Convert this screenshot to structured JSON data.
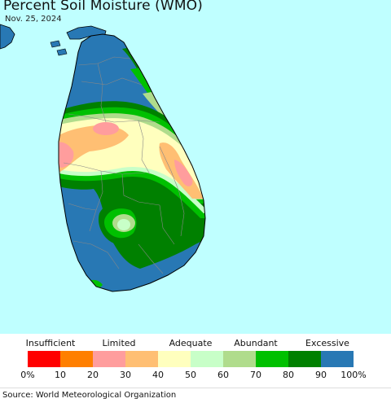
{
  "title": "Percent Soil Moisture (WMO)",
  "date": "Nov. 25, 2024",
  "source": "Source: World Meteorological Organization",
  "legend": {
    "categories": [
      {
        "label": "Insufficient",
        "position_pct": 7
      },
      {
        "label": "Limited",
        "position_pct": 28
      },
      {
        "label": "Adequate",
        "position_pct": 50
      },
      {
        "label": "Abundant",
        "position_pct": 70
      },
      {
        "label": "Excessive",
        "position_pct": 92
      }
    ],
    "bins": [
      {
        "range": "0-10",
        "color": "#ff0000"
      },
      {
        "range": "10-20",
        "color": "#ff7f00"
      },
      {
        "range": "20-30",
        "color": "#ff9d9d"
      },
      {
        "range": "30-40",
        "color": "#ffbf73"
      },
      {
        "range": "40-50",
        "color": "#ffffbe"
      },
      {
        "range": "50-60",
        "color": "#c8ffc8"
      },
      {
        "range": "60-70",
        "color": "#b0dc8c"
      },
      {
        "range": "70-80",
        "color": "#00c000"
      },
      {
        "range": "80-90",
        "color": "#008000"
      },
      {
        "range": "90-100",
        "color": "#2878b4"
      }
    ],
    "ticks": [
      "0%",
      "10",
      "20",
      "30",
      "40",
      "50",
      "60",
      "70",
      "80",
      "90",
      "100%"
    ]
  },
  "colors": {
    "ocean": "#bfffff",
    "land_background": "#ffffff",
    "district_borders": "#888888",
    "coastline": "#000000"
  }
}
